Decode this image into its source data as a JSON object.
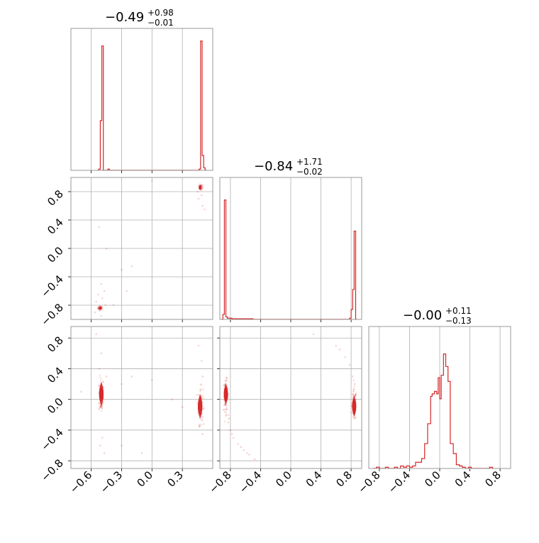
{
  "colors": {
    "data": "#d62728",
    "grid": "#b0b0b0",
    "frame": "#808080",
    "tick": "#000000"
  },
  "chart_data": [
    {
      "type": "histogram",
      "panel": "p00",
      "title": {
        "main": "−0.49",
        "sup": "+0.98",
        "sub": "−0.01"
      },
      "xlim": [
        -0.8,
        0.6
      ],
      "grid": true,
      "bins": [
        [
          -0.54,
          0.0
        ],
        [
          -0.525,
          0.01
        ],
        [
          -0.51,
          0.4
        ],
        [
          -0.495,
          1.0
        ],
        [
          -0.48,
          0.0
        ],
        [
          -0.465,
          0.0
        ],
        [
          -0.45,
          0.0
        ],
        [
          -0.435,
          0.01
        ],
        [
          -0.42,
          0.0
        ],
        [
          0.435,
          0.0
        ],
        [
          0.45,
          0.0
        ],
        [
          0.465,
          0.01
        ],
        [
          0.48,
          1.04
        ],
        [
          0.495,
          0.12
        ],
        [
          0.51,
          0.02
        ],
        [
          0.525,
          0.0
        ]
      ]
    },
    {
      "type": "scatter",
      "panel": "p10",
      "xlim": [
        -0.8,
        0.6
      ],
      "ylim": [
        -1.0,
        1.0
      ],
      "grid": true,
      "clusters": [
        {
          "cx": -0.51,
          "cy": -0.84,
          "sx": 0.012,
          "sy": 0.015,
          "n": 40
        },
        {
          "cx": 0.48,
          "cy": 0.86,
          "sx": 0.01,
          "sy": 0.02,
          "n": 40
        }
      ],
      "points": [
        [
          -0.5,
          -0.5
        ],
        [
          -0.53,
          -0.65
        ],
        [
          -0.49,
          -0.7
        ],
        [
          -0.55,
          -0.75
        ],
        [
          -0.47,
          -0.6
        ],
        [
          -0.52,
          0.3
        ],
        [
          -0.45,
          0.0
        ],
        [
          -0.3,
          -0.3
        ],
        [
          -0.2,
          -0.25
        ],
        [
          -0.38,
          -0.8
        ],
        [
          -0.25,
          -0.6
        ],
        [
          0.46,
          0.7
        ],
        [
          0.5,
          0.6
        ],
        [
          0.49,
          0.75
        ],
        [
          0.45,
          0.8
        ],
        [
          0.52,
          0.55
        ],
        [
          -0.56,
          -0.9
        ],
        [
          -0.46,
          -0.8
        ],
        [
          -0.5,
          -0.95
        ],
        [
          0.0,
          0.95
        ]
      ],
      "contours": [
        {
          "cx": -0.51,
          "cy": -0.84,
          "rx": 0.012,
          "ry": 0.018
        },
        {
          "cx": 0.475,
          "cy": 0.86,
          "rx": 0.01,
          "ry": 0.03
        }
      ]
    },
    {
      "type": "histogram",
      "panel": "p11",
      "title": {
        "main": "−0.84",
        "sup": "+1.71",
        "sub": "−0.02"
      },
      "xlim": [
        -0.94,
        0.94
      ],
      "grid": true,
      "bins": [
        [
          -0.92,
          0.0
        ],
        [
          -0.9,
          0.04
        ],
        [
          -0.88,
          0.96
        ],
        [
          -0.86,
          0.02
        ],
        [
          -0.84,
          0.01
        ],
        [
          -0.82,
          0.01
        ],
        [
          -0.8,
          0.01
        ],
        [
          -0.78,
          0.005
        ],
        [
          -0.5,
          0.0
        ],
        [
          0.76,
          0.0
        ],
        [
          0.78,
          0.01
        ],
        [
          0.8,
          0.08
        ],
        [
          0.82,
          0.24
        ],
        [
          0.84,
          0.71
        ],
        [
          0.86,
          0.0
        ]
      ]
    },
    {
      "type": "scatter",
      "panel": "p20",
      "xlim": [
        -0.8,
        0.6
      ],
      "ylim": [
        -0.9,
        0.95
      ],
      "grid": true,
      "clusters": [
        {
          "cx": -0.5,
          "cy": 0.05,
          "sx": 0.012,
          "sy": 0.12,
          "n": 90
        },
        {
          "cx": 0.48,
          "cy": -0.08,
          "sx": 0.012,
          "sy": 0.12,
          "n": 90
        }
      ],
      "points": [
        [
          -0.5,
          0.6
        ],
        [
          -0.52,
          0.4
        ],
        [
          -0.49,
          -0.5
        ],
        [
          -0.51,
          -0.6
        ],
        [
          -0.47,
          -0.7
        ],
        [
          -0.45,
          0.3
        ],
        [
          -0.3,
          0.2
        ],
        [
          -0.2,
          0.3
        ],
        [
          0.0,
          0.25
        ],
        [
          -0.1,
          -0.7
        ],
        [
          0.46,
          0.7
        ],
        [
          0.49,
          0.5
        ],
        [
          0.5,
          -0.45
        ],
        [
          0.47,
          -0.35
        ],
        [
          -0.55,
          0.85
        ],
        [
          0.3,
          -0.1
        ],
        [
          0.2,
          0.0
        ],
        [
          -0.3,
          -0.6
        ],
        [
          -0.7,
          0.1
        ],
        [
          0.5,
          0.3
        ]
      ],
      "contours": [
        {
          "cx": -0.5,
          "cy": 0.07,
          "rx": 0.02,
          "ry": 0.14
        },
        {
          "cx": 0.475,
          "cy": -0.09,
          "rx": 0.02,
          "ry": 0.14
        }
      ]
    },
    {
      "type": "scatter",
      "panel": "p21",
      "xlim": [
        -0.94,
        0.94
      ],
      "ylim": [
        -0.9,
        0.95
      ],
      "grid": true,
      "clusters": [
        {
          "cx": -0.86,
          "cy": 0.05,
          "sx": 0.015,
          "sy": 0.1,
          "n": 90
        },
        {
          "cx": 0.84,
          "cy": -0.08,
          "sx": 0.015,
          "sy": 0.1,
          "n": 90
        }
      ],
      "points": [
        [
          -0.85,
          -0.2
        ],
        [
          -0.83,
          -0.3
        ],
        [
          -0.8,
          -0.4
        ],
        [
          -0.76,
          -0.5
        ],
        [
          -0.7,
          -0.58
        ],
        [
          -0.62,
          -0.66
        ],
        [
          -0.55,
          -0.72
        ],
        [
          -0.48,
          -0.78
        ],
        [
          -0.82,
          -0.25
        ],
        [
          -0.78,
          -0.45
        ],
        [
          -0.66,
          -0.62
        ],
        [
          -0.58,
          -0.7
        ],
        [
          0.82,
          0.3
        ],
        [
          0.78,
          0.45
        ],
        [
          0.72,
          0.55
        ],
        [
          0.65,
          0.65
        ],
        [
          0.6,
          0.7
        ],
        [
          0.85,
          0.2
        ],
        [
          0.3,
          0.85
        ],
        [
          0.0,
          0.95
        ]
      ],
      "contours": [
        {
          "cx": -0.86,
          "cy": 0.07,
          "rx": 0.025,
          "ry": 0.12
        },
        {
          "cx": 0.84,
          "cy": -0.09,
          "rx": 0.025,
          "ry": 0.12
        }
      ]
    },
    {
      "type": "histogram",
      "panel": "p22",
      "title": {
        "main": "−0.00",
        "sup": "+0.11",
        "sub": "−0.13"
      },
      "xlim": [
        -0.94,
        0.94
      ],
      "grid": true,
      "bins": [
        [
          -0.88,
          0.0
        ],
        [
          -0.84,
          0.01
        ],
        [
          -0.8,
          0.0
        ],
        [
          -0.76,
          0.0
        ],
        [
          -0.72,
          0.01
        ],
        [
          -0.68,
          0.0
        ],
        [
          -0.6,
          0.01
        ],
        [
          -0.56,
          0.0
        ],
        [
          -0.52,
          0.02
        ],
        [
          -0.48,
          0.01
        ],
        [
          -0.44,
          0.02
        ],
        [
          -0.4,
          0.01
        ],
        [
          -0.36,
          0.02
        ],
        [
          -0.32,
          0.05
        ],
        [
          -0.28,
          0.05
        ],
        [
          -0.24,
          0.08
        ],
        [
          -0.2,
          0.2
        ],
        [
          -0.16,
          0.36
        ],
        [
          -0.12,
          0.58
        ],
        [
          -0.1,
          0.6
        ],
        [
          -0.07,
          0.62
        ],
        [
          -0.04,
          0.6
        ],
        [
          -0.02,
          0.73
        ],
        [
          0.0,
          0.56
        ],
        [
          0.02,
          0.75
        ],
        [
          0.05,
          0.92
        ],
        [
          0.08,
          0.82
        ],
        [
          0.11,
          0.7
        ],
        [
          0.14,
          0.2
        ],
        [
          0.18,
          0.12
        ],
        [
          0.22,
          0.03
        ],
        [
          0.26,
          0.02
        ],
        [
          0.3,
          0.01
        ],
        [
          0.34,
          0.0
        ],
        [
          0.38,
          0.01
        ],
        [
          0.42,
          0.0
        ],
        [
          0.5,
          0.0
        ],
        [
          0.66,
          0.01
        ],
        [
          0.7,
          0.0
        ]
      ]
    }
  ],
  "axes": {
    "param0": {
      "ticks": [
        -0.6,
        -0.3,
        0.0,
        0.3
      ],
      "labels": [
        "−0.6",
        "−0.3",
        "0.0",
        "0.3"
      ]
    },
    "param1": {
      "ticks": [
        -0.8,
        -0.4,
        0.0,
        0.4,
        0.8
      ],
      "labels": [
        "−0.8",
        "−0.4",
        "0.0",
        "0.4",
        "0.8"
      ]
    },
    "param2": {
      "ticks": [
        -0.8,
        -0.4,
        0.0,
        0.4,
        0.8
      ],
      "labels": [
        "−0.8",
        "−0.4",
        "0.0",
        "0.4",
        "0.8"
      ]
    }
  }
}
